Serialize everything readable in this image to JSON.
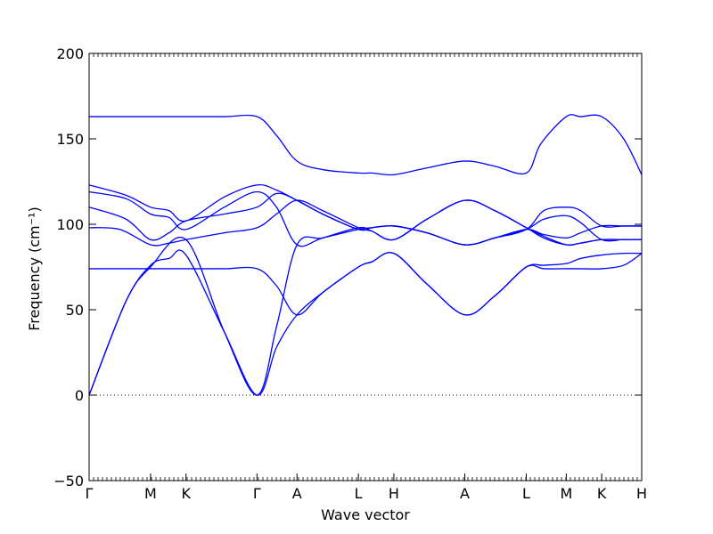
{
  "chart_data": {
    "type": "line",
    "title": "",
    "xlabel": "Wave vector",
    "ylabel": "Frequency (cm⁻¹)",
    "ylim": [
      -50,
      200
    ],
    "yticks": [
      -50,
      0,
      50,
      100,
      150,
      200
    ],
    "ytick_labels": [
      "−50",
      "0",
      "50",
      "100",
      "150",
      "200"
    ],
    "xticks": [
      {
        "label": "Γ",
        "x": 0
      },
      {
        "label": "M",
        "x": 1
      },
      {
        "label": "K",
        "x": 1.577
      },
      {
        "label": "Γ",
        "x": 2.732
      },
      {
        "label": "A",
        "x": 3.383
      },
      {
        "label": "L",
        "x": 4.383
      },
      {
        "label": "H",
        "x": 4.96
      },
      {
        "label": "A",
        "x": 6.115
      },
      {
        "label": "L",
        "x": 7.115
      },
      {
        "label": "M",
        "x": 7.766
      },
      {
        "label": "K",
        "x": 8.343
      },
      {
        "label": "H",
        "x": 8.994
      }
    ],
    "zero_line": true,
    "line_color": "#0000ff",
    "series": [
      {
        "x": [
          0,
          0.6,
          1,
          1.3,
          1.577,
          2.2,
          2.732,
          3.05,
          3.383,
          3.8,
          4.383,
          4.6,
          4.96,
          5.5,
          6.115,
          6.6,
          7.115,
          7.4,
          7.766,
          8.0,
          8.343,
          8.7,
          8.994
        ],
        "y": [
          0,
          55,
          76,
          80,
          82,
          37,
          0,
          28,
          47,
          60,
          75,
          78,
          83,
          65,
          47,
          58,
          75,
          76,
          77,
          80,
          82,
          83,
          83
        ]
      },
      {
        "x": [
          0,
          0.6,
          1,
          1.577,
          2.2,
          2.732,
          3.05,
          3.383,
          3.8,
          4.383,
          4.6,
          4.96,
          5.5,
          6.115,
          6.6,
          7.115,
          7.4,
          7.766,
          8.0,
          8.343,
          8.7,
          8.994
        ],
        "y": [
          0,
          55,
          75,
          91,
          37,
          0,
          40,
          88,
          92,
          98,
          96,
          91,
          103,
          114,
          108,
          98,
          93,
          88,
          89,
          91,
          91,
          91
        ]
      },
      {
        "x": [
          0,
          1,
          1.577,
          2.2,
          2.732,
          3.05,
          3.383,
          3.8,
          4.383,
          4.6,
          4.96,
          5.5,
          6.115,
          6.6,
          7.115,
          7.4,
          7.766,
          8.0,
          8.343,
          8.7,
          8.994
        ],
        "y": [
          74,
          74,
          74,
          74,
          74,
          64,
          47,
          60,
          75,
          78,
          83,
          65,
          47,
          58,
          75,
          74,
          74,
          74,
          74,
          76,
          83
        ]
      },
      {
        "x": [
          0,
          0.5,
          1,
          1.3,
          1.577,
          2.2,
          2.732,
          3.05,
          3.383,
          3.8,
          4.383,
          4.6,
          4.96,
          5.5,
          6.115,
          6.6,
          7.115,
          7.4,
          7.766,
          8.0,
          8.343,
          8.7,
          8.994
        ],
        "y": [
          98,
          97,
          88,
          89,
          91,
          95,
          98,
          106,
          114,
          108,
          98,
          96,
          91,
          103,
          114,
          108,
          98,
          92,
          88,
          89,
          91,
          91,
          91
        ]
      },
      {
        "x": [
          0,
          0.6,
          1,
          1.3,
          1.577,
          2.2,
          2.732,
          3.05,
          3.383,
          3.8,
          4.383,
          4.6,
          4.96,
          5.5,
          6.115,
          6.6,
          7.115,
          7.4,
          7.766,
          8.0,
          8.343,
          8.7,
          8.994
        ],
        "y": [
          110,
          103,
          91,
          95,
          102,
          106,
          110,
          118,
          114,
          106,
          97,
          98,
          99,
          95,
          88,
          92,
          97,
          103,
          105,
          101,
          91,
          91,
          91
        ]
      },
      {
        "x": [
          0,
          0.6,
          1,
          1.3,
          1.577,
          2.2,
          2.732,
          3.05,
          3.383,
          3.8,
          4.383,
          4.6,
          4.96,
          5.5,
          6.115,
          6.6,
          7.115,
          7.4,
          7.766,
          8.0,
          8.343,
          8.7,
          8.994
        ],
        "y": [
          119,
          115,
          106,
          104,
          97,
          110,
          119,
          110,
          88,
          92,
          97,
          98,
          99,
          95,
          88,
          92,
          97,
          94,
          92,
          95,
          99,
          99,
          99
        ]
      },
      {
        "x": [
          0,
          0.6,
          1,
          1.3,
          1.577,
          2.2,
          2.732,
          3.05,
          3.383,
          3.8,
          4.383,
          4.6,
          4.96,
          5.5,
          6.115,
          6.6,
          7.115,
          7.4,
          7.766,
          8.0,
          8.343,
          8.7,
          8.994
        ],
        "y": [
          123,
          117,
          110,
          108,
          102,
          116,
          123,
          120,
          114,
          106,
          97,
          98,
          99,
          95,
          88,
          92,
          97,
          108,
          110,
          108,
          99,
          99,
          99
        ]
      },
      {
        "x": [
          0,
          1,
          1.577,
          2.2,
          2.732,
          3.05,
          3.383,
          3.8,
          4.383,
          4.6,
          4.96,
          5.5,
          6.115,
          6.6,
          7.115,
          7.35,
          7.766,
          8.0,
          8.343,
          8.7,
          8.994
        ],
        "y": [
          163,
          163,
          163,
          163,
          163,
          152,
          137,
          132,
          130,
          130,
          129,
          133,
          137,
          134,
          130,
          147,
          163,
          163,
          163,
          150,
          129
        ]
      }
    ]
  }
}
